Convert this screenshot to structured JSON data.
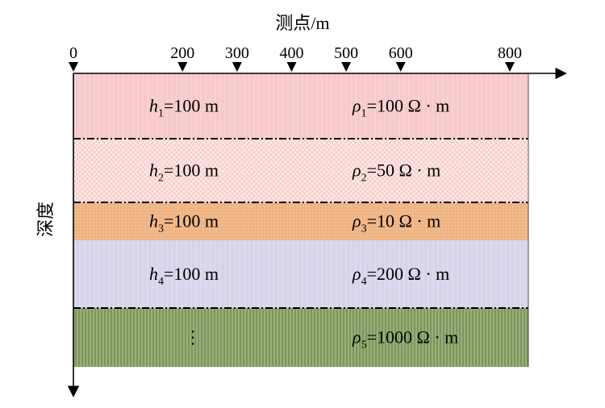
{
  "axes": {
    "x_title": "测点/m",
    "y_title": "深度",
    "x_ticks": [
      "0",
      "200",
      "300",
      "400",
      "500",
      "600",
      "800"
    ],
    "x_tick_values": [
      0,
      200,
      300,
      400,
      500,
      600,
      800
    ]
  },
  "layers": [
    {
      "h_var": "h",
      "h_sub": "1",
      "h_value": "=100 m",
      "rho_var": "ρ",
      "rho_sub": "1",
      "rho_value": "=100 Ω · m",
      "color": "#f7c9c9"
    },
    {
      "h_var": "h",
      "h_sub": "2",
      "h_value": "=100 m",
      "rho_var": "ρ",
      "rho_sub": "2",
      "rho_value": "=50 Ω · m",
      "color": "#fde8e6"
    },
    {
      "h_var": "h",
      "h_sub": "3",
      "h_value": "=100 m",
      "rho_var": "ρ",
      "rho_sub": "3",
      "rho_value": "=10 Ω · m",
      "color": "#f2b98a"
    },
    {
      "h_var": "h",
      "h_sub": "4",
      "h_value": "=100 m",
      "rho_var": "ρ",
      "rho_sub": "4",
      "rho_value": "=200 Ω · m",
      "color": "#d6d4ea"
    },
    {
      "h_label": "⋮",
      "rho_var": "ρ",
      "rho_sub": "5",
      "rho_value": "=1000 Ω · m",
      "color": "#9bb07a"
    }
  ]
}
